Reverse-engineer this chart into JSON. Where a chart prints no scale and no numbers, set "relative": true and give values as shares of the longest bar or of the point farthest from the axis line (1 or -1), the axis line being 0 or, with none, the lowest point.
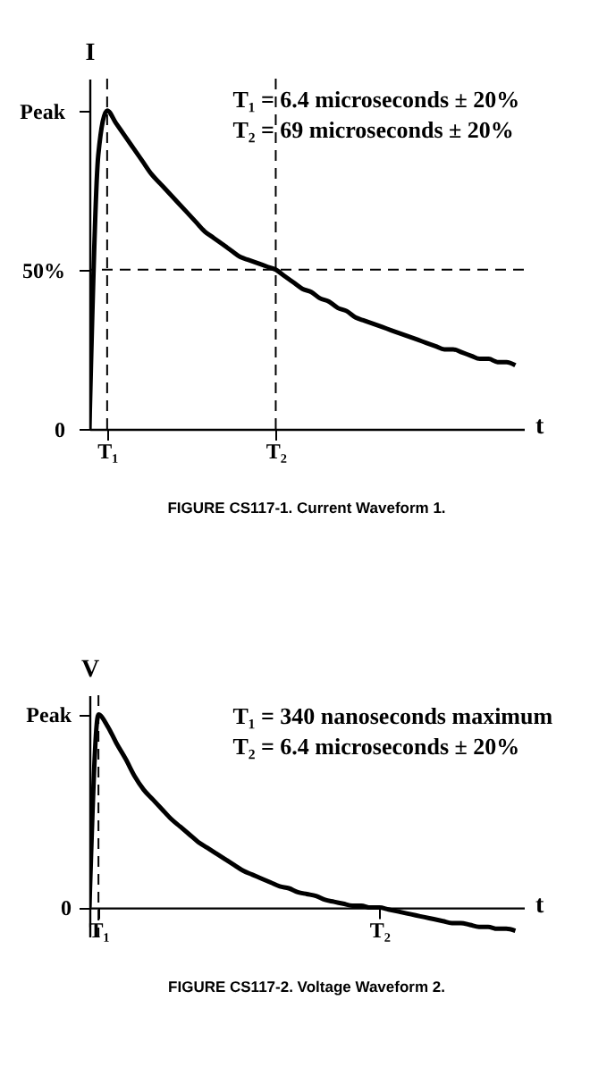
{
  "chart_data": [
    {
      "type": "line",
      "title": "FIGURE CS117-1.  Current Waveform 1.",
      "ylabel": "I",
      "xlabel": "t",
      "categories": [
        null,
        null,
        "T₁",
        null,
        null,
        null,
        null,
        null,
        null,
        null,
        null,
        null,
        null,
        null,
        null,
        null,
        null,
        null,
        null,
        null,
        null,
        "T₂",
        null,
        null,
        null,
        null,
        null,
        null,
        null,
        null,
        null,
        null,
        null,
        null,
        null,
        null,
        null,
        null,
        null,
        null,
        null,
        null,
        null,
        null,
        null,
        null,
        null,
        null,
        null
      ],
      "series": [
        {
          "color": "#000000",
          "values": [
            0,
            86,
            100,
            96,
            92,
            88,
            84,
            80,
            77,
            74,
            71,
            68,
            65,
            62,
            60,
            58,
            56,
            54,
            53,
            52,
            51,
            50,
            48,
            46,
            44,
            43,
            41,
            40,
            38,
            37,
            35,
            34,
            33,
            32,
            31,
            30,
            29,
            28,
            27,
            26,
            25,
            25,
            24,
            23,
            22,
            22,
            21,
            21,
            20
          ]
        }
      ],
      "ylim": [
        0,
        110
      ],
      "yticks": [
        0,
        {
          "value": 50,
          "label": "50%"
        },
        {
          "value": 100,
          "label": "Peak"
        }
      ],
      "ref_lines": [
        {
          "axis": "x",
          "value": "T₁",
          "line_style": "dashed"
        },
        {
          "axis": "x",
          "value": "T₂",
          "line_style": "dashed"
        },
        {
          "axis": "y",
          "value": 50,
          "line_style": "dashed"
        }
      ],
      "annotations": [
        "T₁ = 6.4 microseconds ± 20%",
        "T₂ = 69 microseconds ± 20%"
      ],
      "grid": false,
      "marker": "none",
      "line_style": "solid"
    },
    {
      "type": "line",
      "title": "FIGURE CS117-2.  Voltage Waveform 2.",
      "ylabel": "V",
      "xlabel": "t",
      "relative": true,
      "categories": [
        null,
        "T₁",
        null,
        null,
        null,
        null,
        null,
        null,
        null,
        null,
        null,
        null,
        null,
        null,
        null,
        null,
        null,
        null,
        null,
        null,
        null,
        null,
        null,
        null,
        null,
        null,
        null,
        null,
        null,
        null,
        null,
        null,
        "T₂",
        null,
        null,
        null,
        null,
        null,
        null,
        null,
        null,
        null,
        null,
        null,
        null,
        null,
        null,
        null
      ],
      "series": [
        {
          "color": "#000000",
          "values": [
            0,
            1.0,
            0.94,
            0.85,
            0.77,
            0.68,
            0.61,
            0.56,
            0.51,
            0.46,
            0.42,
            0.38,
            0.34,
            0.31,
            0.28,
            0.25,
            0.22,
            0.19,
            0.17,
            0.15,
            0.13,
            0.11,
            0.1,
            0.08,
            0.07,
            0.06,
            0.04,
            0.03,
            0.02,
            0.01,
            0.01,
            0,
            0,
            -0.01,
            -0.02,
            -0.03,
            -0.04,
            -0.05,
            -0.06,
            -0.07,
            -0.08,
            -0.08,
            -0.09,
            -0.1,
            -0.1,
            -0.11,
            -0.11,
            -0.12
          ]
        }
      ],
      "ref_lines": [
        {
          "axis": "x",
          "value": "T₁",
          "line_style": "dashed"
        }
      ],
      "annotations": [
        "T₁ = 340 nanoseconds maximum",
        "T₂ = 6.4 microseconds ± 20%",
        "Peak",
        "0"
      ],
      "grid": false,
      "marker": "none",
      "line_style": "solid"
    }
  ]
}
